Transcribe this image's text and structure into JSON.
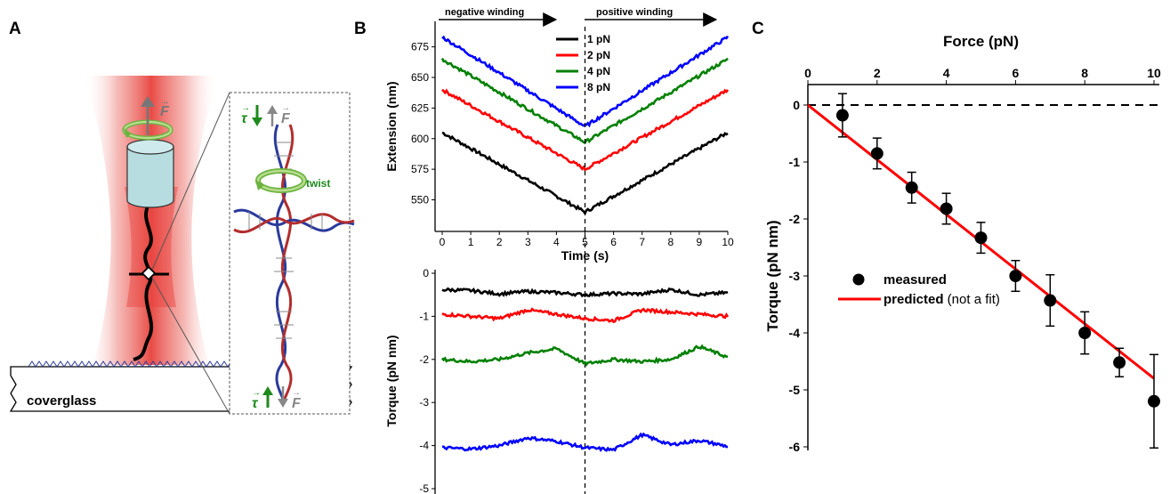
{
  "panels": {
    "a": "A",
    "b": "B",
    "c": "C"
  },
  "schematic": {
    "coverglass_label": "coverglass",
    "twist_label": "twist",
    "force_symbol": "F",
    "torque_symbol": "τ",
    "colors": {
      "laser": "#e8413b",
      "cylinder": "#b7dde0",
      "rotation_arrow": "#6db33f",
      "dna_strand_1": "#2a3a9c",
      "dna_strand_2": "#b32d2d",
      "torque_arrow": "#1e8a1e",
      "force_arrow": "#808080"
    }
  },
  "chart_data": [
    {
      "id": "B-top",
      "type": "line",
      "xlabel": "Time (s)",
      "ylabel": "Extension (nm)",
      "xlim": [
        0,
        10
      ],
      "ylim": [
        530,
        690
      ],
      "xticks": [
        0,
        1,
        2,
        3,
        4,
        5,
        6,
        7,
        8,
        9,
        10
      ],
      "yticks": [
        550,
        575,
        600,
        625,
        650,
        675
      ],
      "annotations": [
        "negative winding",
        "positive winding"
      ],
      "vertical_dashed_line_x": 5,
      "legend_position": "top-right",
      "series": [
        {
          "name": "1 pN",
          "color": "#000000",
          "x": [
            0,
            5,
            10
          ],
          "values": [
            605,
            540,
            605
          ]
        },
        {
          "name": "2 pN",
          "color": "#ff0000",
          "x": [
            0,
            5,
            10
          ],
          "values": [
            640,
            575,
            640
          ]
        },
        {
          "name": "4 pN",
          "color": "#008000",
          "x": [
            0,
            5,
            10
          ],
          "values": [
            665,
            597,
            665
          ]
        },
        {
          "name": "8 pN",
          "color": "#0000ff",
          "x": [
            0,
            5,
            10
          ],
          "values": [
            683,
            610,
            683
          ]
        }
      ]
    },
    {
      "id": "B-bottom",
      "type": "line",
      "ylabel": "Torque (pN nm)",
      "xlim": [
        0,
        10
      ],
      "ylim": [
        -5,
        0
      ],
      "yticks": [
        -5,
        -4,
        -3,
        -2,
        -1,
        0
      ],
      "vertical_dashed_line_x": 5,
      "series": [
        {
          "name": "1 pN",
          "color": "#000000",
          "x": [
            0,
            1,
            2,
            3,
            4,
            5,
            6,
            7,
            8,
            9,
            10
          ],
          "values": [
            -0.38,
            -0.4,
            -0.48,
            -0.42,
            -0.45,
            -0.5,
            -0.47,
            -0.48,
            -0.38,
            -0.5,
            -0.45
          ]
        },
        {
          "name": "2 pN",
          "color": "#ff0000",
          "x": [
            0,
            1,
            2,
            3,
            4,
            5,
            6,
            7,
            8,
            9,
            10
          ],
          "values": [
            -0.95,
            -1.0,
            -1.05,
            -0.85,
            -0.95,
            -1.05,
            -1.1,
            -0.85,
            -0.9,
            -0.95,
            -1.0
          ]
        },
        {
          "name": "4 pN",
          "color": "#008000",
          "x": [
            0,
            1,
            2,
            3,
            4,
            5,
            6,
            7,
            8,
            9,
            10
          ],
          "values": [
            -2.0,
            -2.05,
            -2.0,
            -1.85,
            -1.75,
            -2.1,
            -2.0,
            -2.05,
            -2.0,
            -1.7,
            -1.95
          ]
        },
        {
          "name": "8 pN",
          "color": "#0000ff",
          "x": [
            0,
            1,
            2,
            3,
            4,
            5,
            6,
            7,
            8,
            9,
            10
          ],
          "values": [
            -4.05,
            -4.08,
            -4.0,
            -3.82,
            -3.9,
            -4.05,
            -4.1,
            -3.75,
            -3.98,
            -3.88,
            -4.02
          ]
        }
      ]
    },
    {
      "id": "C",
      "type": "scatter",
      "xlabel": "Force (pN)",
      "ylabel": "Torque (pN nm)",
      "xlim": [
        0,
        10
      ],
      "ylim": [
        -6,
        0.5
      ],
      "xticks": [
        0,
        2,
        4,
        6,
        8,
        10
      ],
      "yticks": [
        -6,
        -5,
        -4,
        -3,
        -2,
        -1,
        0
      ],
      "x_axis_position": "top",
      "zero_dashed_line": true,
      "legend_position": "bottom-left",
      "series": [
        {
          "name": "measured",
          "color": "#000000",
          "x": [
            1,
            2,
            3,
            4,
            5,
            6,
            7,
            8,
            9,
            10
          ],
          "values": [
            -0.18,
            -0.85,
            -1.45,
            -1.82,
            -2.33,
            -3.0,
            -3.43,
            -4.0,
            -4.52,
            -5.2
          ],
          "errors": [
            0.38,
            0.27,
            0.27,
            0.27,
            0.27,
            0.27,
            0.45,
            0.37,
            0.25,
            0.82
          ]
        },
        {
          "name": "predicted",
          "name_suffix": " (not a fit)",
          "color": "#ff0000",
          "type": "line",
          "x": [
            0,
            10
          ],
          "values": [
            0,
            -4.8
          ]
        }
      ]
    }
  ]
}
